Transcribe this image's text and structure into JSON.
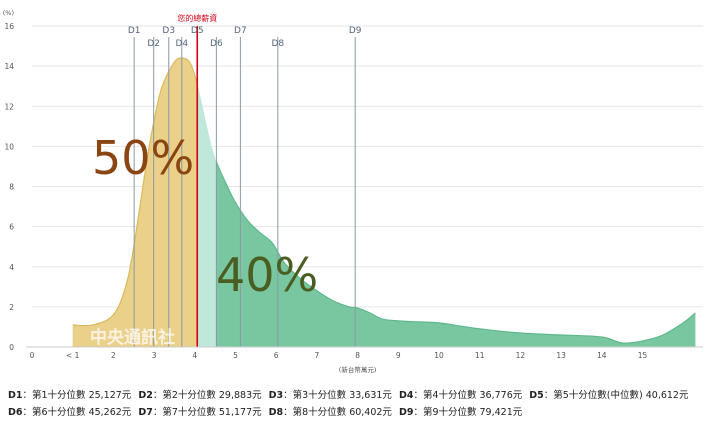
{
  "chart_data": {
    "type": "area",
    "y_unit": "(%)",
    "x_unit": "(新台幣萬元)",
    "ylim": [
      0,
      16
    ],
    "y_ticks": [
      "0",
      "2",
      "4",
      "6",
      "8",
      "10",
      "12",
      "14",
      "16"
    ],
    "x_ticks": [
      "0",
      "< 1",
      "2",
      "3",
      "4",
      "5",
      "6",
      "7",
      "8",
      "9",
      "10",
      "11",
      "12",
      "13",
      "14",
      "15"
    ],
    "grid": "horizontal",
    "series": {
      "x": [
        1.0,
        1.5,
        2.0,
        2.3,
        2.5,
        2.8,
        3.0,
        3.2,
        3.5,
        3.7,
        3.9,
        4.1,
        4.3,
        4.5,
        4.8,
        5.0,
        5.3,
        5.6,
        5.9,
        6.2,
        6.6,
        7.0,
        7.4,
        7.8,
        8.0,
        8.3,
        8.6,
        9.0,
        9.5,
        10.0,
        11.0,
        12.0,
        13.0,
        14.0,
        14.5,
        15.0,
        15.5,
        16.0,
        16.3
      ],
      "y": [
        1.1,
        1.1,
        1.6,
        3.0,
        5.0,
        9.0,
        11.3,
        13.0,
        14.2,
        14.4,
        14.1,
        12.8,
        11.0,
        9.4,
        8.0,
        7.2,
        6.3,
        5.7,
        5.2,
        4.2,
        3.4,
        2.8,
        2.3,
        2.0,
        1.95,
        1.7,
        1.4,
        1.3,
        1.25,
        1.2,
        0.9,
        0.7,
        0.6,
        0.5,
        0.2,
        0.3,
        0.6,
        1.2,
        1.7
      ]
    },
    "deciles": [
      {
        "label": "D1",
        "x": 2.51
      },
      {
        "label": "D2",
        "x": 2.99
      },
      {
        "label": "D3",
        "x": 3.36
      },
      {
        "label": "D4",
        "x": 3.68
      },
      {
        "label": "D5",
        "x": 4.06
      },
      {
        "label": "D6",
        "x": 4.53
      },
      {
        "label": "D7",
        "x": 5.12
      },
      {
        "label": "D8",
        "x": 6.04
      },
      {
        "label": "D9",
        "x": 7.94
      }
    ],
    "your_salary": {
      "label": "您的總薪資",
      "x": 4.06
    },
    "annotations": [
      {
        "text": "50%",
        "color": "#8a4612"
      },
      {
        "text": "40%",
        "color": "#4a5e22"
      }
    ],
    "fills": {
      "left": "#ebd08a",
      "mid": "#bfe8da",
      "right": "#79c7a0",
      "left_line": "#d9b95a",
      "right_line": "#5fb88c",
      "marker": "#d0021b"
    }
  },
  "watermark": "中央通訊社",
  "legend": {
    "row1": [
      {
        "key": "D1",
        "text": "：第1十分位數 25,127元"
      },
      {
        "key": "D2",
        "text": "：第2十分位數 29,883元"
      },
      {
        "key": "D3",
        "text": "：第3十分位數 33,631元"
      },
      {
        "key": "D4",
        "text": "：第4十分位數 36,776元"
      },
      {
        "key": "D5",
        "text": "：第5十分位數(中位數) 40,612元"
      }
    ],
    "row2": [
      {
        "key": "D6",
        "text": "：第6十分位數 45,262元"
      },
      {
        "key": "D7",
        "text": "：第7十分位數 51,177元"
      },
      {
        "key": "D8",
        "text": "：第8十分位數 60,402元"
      },
      {
        "key": "D9",
        "text": "：第9十分位數 79,421元"
      }
    ]
  }
}
